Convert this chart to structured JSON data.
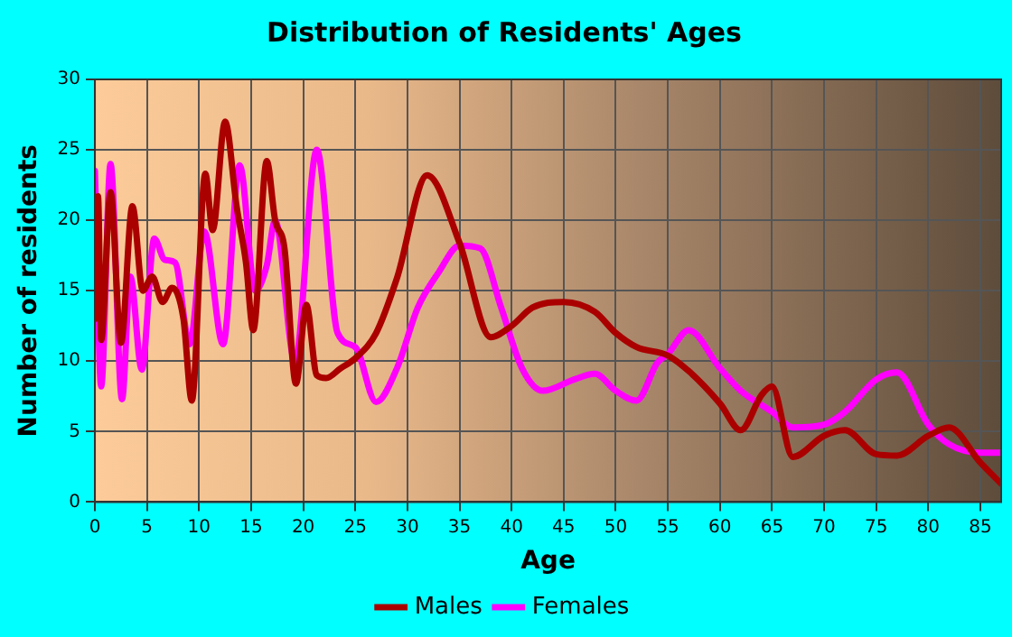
{
  "chart_data": {
    "type": "line",
    "title": "Distribution of Residents' Ages",
    "xlabel": "Age",
    "ylabel": "Number of residents",
    "xlim": [
      0,
      87
    ],
    "xticks": [
      0,
      5,
      10,
      15,
      20,
      25,
      30,
      35,
      40,
      45,
      50,
      55,
      60,
      65,
      70,
      75,
      80,
      85
    ],
    "ylim": [
      0,
      30
    ],
    "yticks": [
      0,
      5,
      10,
      15,
      20,
      25,
      30
    ],
    "grid": true,
    "legend": "bottom",
    "marker": "none",
    "line_style": "solid",
    "series": [
      {
        "name": "Males",
        "color": "#aa0000",
        "x": [
          0,
          0.3,
          0.6,
          1.5,
          2.5,
          3.6,
          4.6,
          5.5,
          6.5,
          7.4,
          8.5,
          9.3,
          10.6,
          11.3,
          12.5,
          13.6,
          14.5,
          15.2,
          16.5,
          17.3,
          18.2,
          19.3,
          20.3,
          21.3,
          22.2,
          23.6,
          25,
          27,
          29,
          31.9,
          35,
          38,
          40,
          42,
          45,
          48,
          50,
          52,
          55,
          57,
          60,
          62,
          64,
          65,
          67,
          70,
          72,
          75,
          77,
          80,
          82,
          85,
          87
        ],
        "values": [
          13,
          21.7,
          11.5,
          22,
          11.3,
          21,
          15,
          16,
          14.2,
          15.2,
          13,
          7.2,
          23.3,
          19.3,
          27,
          21,
          17,
          12.2,
          24.2,
          20,
          18,
          8.4,
          14,
          9,
          8.8,
          9.5,
          10.2,
          12,
          15.9,
          23.2,
          18.4,
          11.7,
          12.5,
          13.8,
          14.2,
          13.5,
          12,
          11,
          10.4,
          9.3,
          7,
          5.1,
          7.6,
          8.2,
          3.2,
          4.7,
          5.1,
          3.4,
          3.3,
          4.7,
          5.3,
          2.8,
          1.3
        ]
      },
      {
        "name": "Females",
        "color": "#ff00ff",
        "x": [
          0,
          0.6,
          1.5,
          2.6,
          3.4,
          4.5,
          5.7,
          6.7,
          7.7,
          9.1,
          10.5,
          12.3,
          13.9,
          15.4,
          16.5,
          17.3,
          19.2,
          21.3,
          23.3,
          25,
          27,
          29,
          31,
          33,
          35,
          37,
          39,
          41,
          43,
          46,
          48,
          50,
          52,
          54,
          55,
          57,
          60,
          62,
          65,
          67,
          70,
          72,
          75,
          77,
          80,
          82,
          85,
          87
        ],
        "values": [
          23.5,
          8.2,
          24,
          7.3,
          16,
          9.4,
          18.7,
          17.2,
          17,
          11.2,
          19.2,
          11.2,
          23.9,
          15,
          16.8,
          20,
          10,
          25,
          12,
          11,
          7.1,
          9.5,
          13.8,
          16.3,
          18.2,
          18,
          13.8,
          9.5,
          7.9,
          8.7,
          9.1,
          7.9,
          7.2,
          9.9,
          10.5,
          12.2,
          9.5,
          7.9,
          6.4,
          5.3,
          5.5,
          6.4,
          8.7,
          9.2,
          5.5,
          4.1,
          3.5,
          3.5
        ]
      }
    ]
  }
}
